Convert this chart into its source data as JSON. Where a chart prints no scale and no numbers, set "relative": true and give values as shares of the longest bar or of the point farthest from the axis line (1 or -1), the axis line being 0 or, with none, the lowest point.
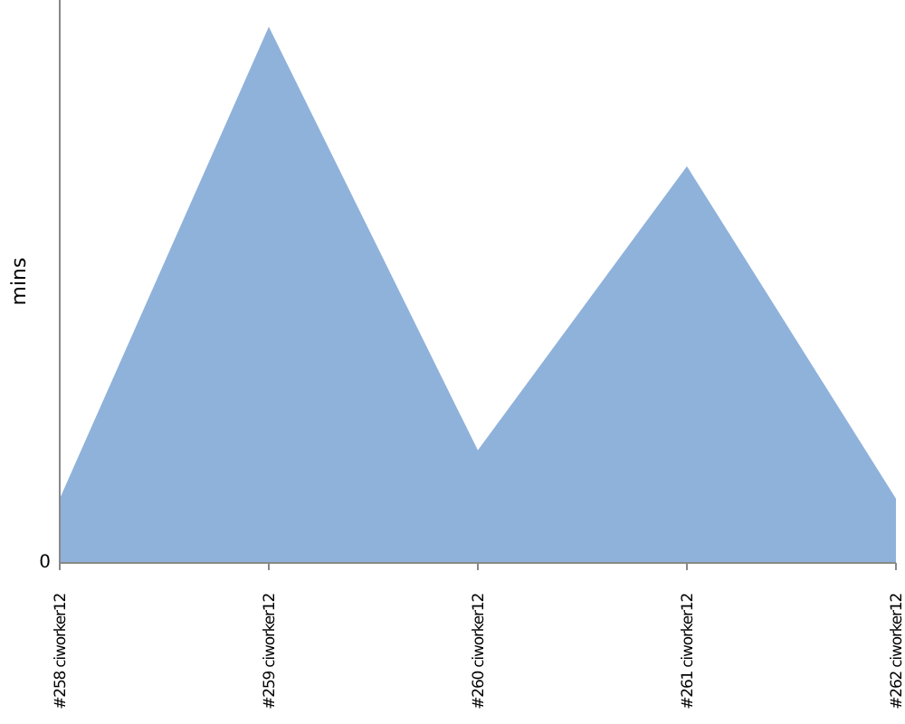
{
  "chart_data": {
    "type": "area",
    "ylabel": "mins",
    "relative": true,
    "categories": [
      "#258 ciworker12",
      "#259 ciworker12",
      "#260 ciworker12",
      "#261 ciworker12",
      "#262 ciworker12"
    ],
    "series": [
      {
        "color": "#8fb2db",
        "values": [
          0.12,
          1,
          0.21,
          0.74,
          0.12
        ]
      }
    ],
    "annotations": [
      "0"
    ]
  }
}
